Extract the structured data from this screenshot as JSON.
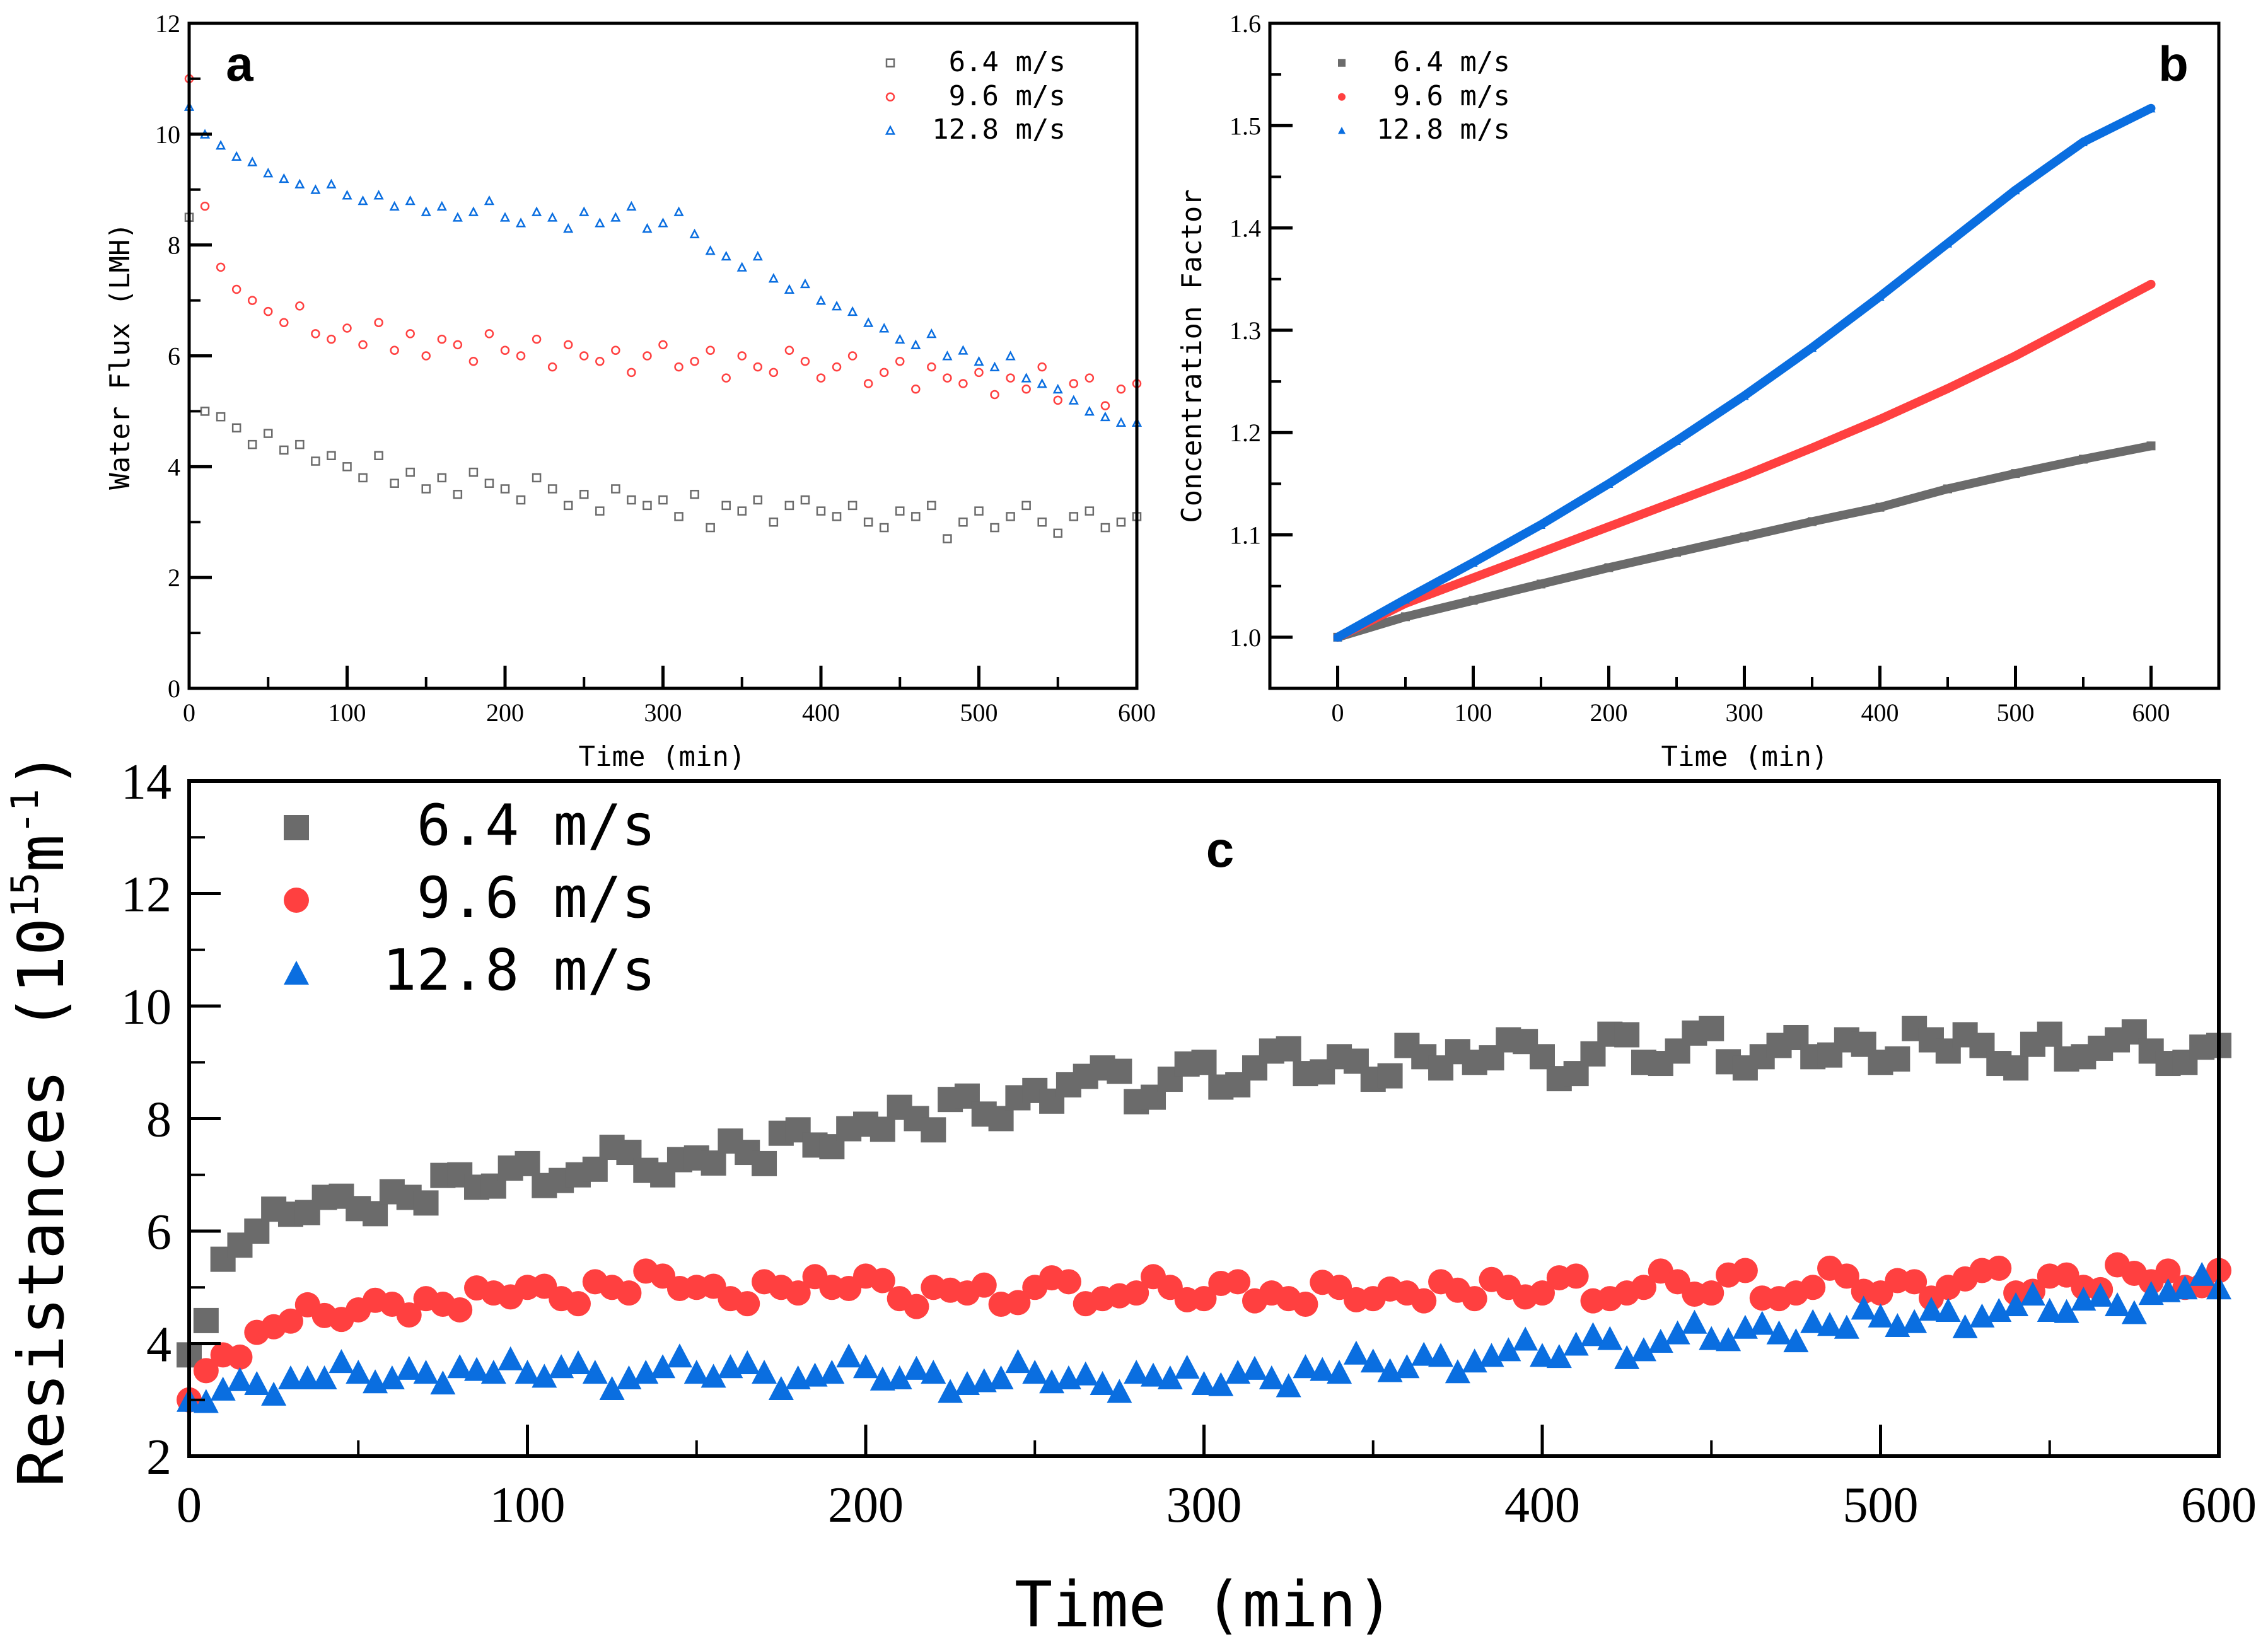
{
  "colors": {
    "s64": "#6b6b6b",
    "s96": "#ff4040",
    "s128": "#0a6ee0"
  },
  "chart_data": [
    {
      "type": "scatter",
      "panel_letter": "a",
      "xlabel": "Time (min)",
      "ylabel": "Water Flux (LMH)",
      "xlim": [
        0,
        600
      ],
      "ylim": [
        0,
        12
      ],
      "xticks": [
        "0",
        "100",
        "200",
        "300",
        "400",
        "500",
        "600"
      ],
      "yticks": [
        "0",
        "2",
        "4",
        "6",
        "8",
        "10",
        "12"
      ],
      "x_start": 0,
      "x_step": 10,
      "series": [
        {
          "name": "6.4 m/s",
          "marker": "open-square",
          "values": [
            8.5,
            5.0,
            4.9,
            4.7,
            4.4,
            4.6,
            4.3,
            4.4,
            4.1,
            4.2,
            4.0,
            3.8,
            4.2,
            3.7,
            3.9,
            3.6,
            3.8,
            3.5,
            3.9,
            3.7,
            3.6,
            3.4,
            3.8,
            3.6,
            3.3,
            3.5,
            3.2,
            3.6,
            3.4,
            3.3,
            3.4,
            3.1,
            3.5,
            2.9,
            3.3,
            3.2,
            3.4,
            3.0,
            3.3,
            3.4,
            3.2,
            3.1,
            3.3,
            3.0,
            2.9,
            3.2,
            3.1,
            3.3,
            2.7,
            3.0,
            3.2,
            2.9,
            3.1,
            3.3,
            3.0,
            2.8,
            3.1,
            3.2,
            2.9,
            3.0,
            3.1
          ]
        },
        {
          "name": "9.6 m/s",
          "marker": "open-circle",
          "values": [
            11.0,
            8.7,
            7.6,
            7.2,
            7.0,
            6.8,
            6.6,
            6.9,
            6.4,
            6.3,
            6.5,
            6.2,
            6.6,
            6.1,
            6.4,
            6.0,
            6.3,
            6.2,
            5.9,
            6.4,
            6.1,
            6.0,
            6.3,
            5.8,
            6.2,
            6.0,
            5.9,
            6.1,
            5.7,
            6.0,
            6.2,
            5.8,
            5.9,
            6.1,
            5.6,
            6.0,
            5.8,
            5.7,
            6.1,
            5.9,
            5.6,
            5.8,
            6.0,
            5.5,
            5.7,
            5.9,
            5.4,
            5.8,
            5.6,
            5.5,
            5.7,
            5.3,
            5.6,
            5.4,
            5.8,
            5.2,
            5.5,
            5.6,
            5.1,
            5.4,
            5.5
          ]
        },
        {
          "name": "12.8 m/s",
          "marker": "open-triangle",
          "values": [
            10.5,
            10.0,
            9.8,
            9.6,
            9.5,
            9.3,
            9.2,
            9.1,
            9.0,
            9.1,
            8.9,
            8.8,
            8.9,
            8.7,
            8.8,
            8.6,
            8.7,
            8.5,
            8.6,
            8.8,
            8.5,
            8.4,
            8.6,
            8.5,
            8.3,
            8.6,
            8.4,
            8.5,
            8.7,
            8.3,
            8.4,
            8.6,
            8.2,
            7.9,
            7.8,
            7.6,
            7.8,
            7.4,
            7.2,
            7.3,
            7.0,
            6.9,
            6.8,
            6.6,
            6.5,
            6.3,
            6.2,
            6.4,
            6.0,
            6.1,
            5.9,
            5.8,
            6.0,
            5.6,
            5.5,
            5.4,
            5.2,
            5.0,
            4.9,
            4.8,
            4.8
          ]
        }
      ]
    },
    {
      "type": "line",
      "panel_letter": "b",
      "xlabel": "Time (min)",
      "ylabel": "Concentration Factor",
      "xlim": [
        -50,
        650
      ],
      "ylim": [
        0.95,
        1.6
      ],
      "xticks": [
        "0",
        "100",
        "200",
        "300",
        "400",
        "500",
        "600"
      ],
      "yticks": [
        "1.0",
        "1.1",
        "1.2",
        "1.3",
        "1.4",
        "1.5",
        "1.6"
      ],
      "x_start": 0,
      "x_step": 50,
      "series": [
        {
          "name": "6.4 m/s",
          "marker": "filled-square",
          "values": [
            1.0,
            1.02,
            1.036,
            1.052,
            1.068,
            1.083,
            1.098,
            1.113,
            1.127,
            1.145,
            1.16,
            1.174,
            1.187
          ]
        },
        {
          "name": "9.6 m/s",
          "marker": "filled-circle",
          "values": [
            1.0,
            1.033,
            1.058,
            1.083,
            1.108,
            1.133,
            1.158,
            1.185,
            1.213,
            1.243,
            1.275,
            1.31,
            1.345
          ]
        },
        {
          "name": "12.8 m/s",
          "marker": "filled-triangle",
          "values": [
            1.0,
            1.037,
            1.073,
            1.11,
            1.15,
            1.192,
            1.236,
            1.283,
            1.333,
            1.385,
            1.437,
            1.484,
            1.517
          ]
        }
      ]
    },
    {
      "type": "scatter",
      "panel_letter": "c",
      "xlabel": "Time (min)",
      "ylabel": "Resistances (10",
      "ylabel_sup1": "15",
      "ylabel_mid": "m",
      "ylabel_sup2": "-1",
      "ylabel_end": ")",
      "xlim": [
        0,
        600
      ],
      "ylim": [
        2,
        14
      ],
      "xticks": [
        "0",
        "100",
        "200",
        "300",
        "400",
        "500",
        "600"
      ],
      "yticks": [
        "2",
        "4",
        "6",
        "8",
        "10",
        "12",
        "14"
      ],
      "x_start": 0,
      "x_step": 10,
      "series": [
        {
          "name": "6.4 m/s",
          "marker": "filled-square",
          "values": [
            3.8,
            5.5,
            6.0,
            6.3,
            6.6,
            6.4,
            6.7,
            6.5,
            7.0,
            6.8,
            7.2,
            6.9,
            7.1,
            7.4,
            7.0,
            7.3,
            7.6,
            7.2,
            7.8,
            7.5,
            7.9,
            8.2,
            7.8,
            8.4,
            8.0,
            8.5,
            8.6,
            8.9,
            8.3,
            8.7,
            9.0,
            8.6,
            9.2,
            8.8,
            9.1,
            8.7,
            9.3,
            8.9,
            9.0,
            9.4,
            9.1,
            8.8,
            9.5,
            9.0,
            9.2,
            9.6,
            8.9,
            9.3,
            9.1,
            9.4,
            9.0,
            9.6,
            9.2,
            9.3,
            8.9,
            9.5,
            9.1,
            9.4,
            9.2,
            9.0,
            9.3
          ]
        },
        {
          "name": "9.6 m/s",
          "marker": "filled-circle",
          "values": [
            3.0,
            3.8,
            4.2,
            4.4,
            4.5,
            4.6,
            4.7,
            4.8,
            4.6,
            4.9,
            5.0,
            4.8,
            5.1,
            4.9,
            5.2,
            5.0,
            4.8,
            5.1,
            4.9,
            5.0,
            5.2,
            4.8,
            5.0,
            4.9,
            4.7,
            5.0,
            5.1,
            4.8,
            4.9,
            5.0,
            4.8,
            5.1,
            4.9,
            4.7,
            5.0,
            4.8,
            4.9,
            5.1,
            4.8,
            5.0,
            4.9,
            5.2,
            4.8,
            5.0,
            5.1,
            4.9,
            5.3,
            4.8,
            5.0,
            5.2,
            4.9,
            5.1,
            5.0,
            5.3,
            4.9,
            5.2,
            5.0,
            5.4,
            5.1,
            5.0,
            5.3
          ]
        },
        {
          "name": "12.8 m/s",
          "marker": "filled-triangle",
          "values": [
            3.0,
            3.2,
            3.3,
            3.4,
            3.4,
            3.5,
            3.4,
            3.5,
            3.6,
            3.5,
            3.5,
            3.6,
            3.5,
            3.4,
            3.6,
            3.5,
            3.6,
            3.5,
            3.4,
            3.5,
            3.6,
            3.4,
            3.5,
            3.3,
            3.4,
            3.5,
            3.4,
            3.3,
            3.5,
            3.4,
            3.3,
            3.5,
            3.4,
            3.6,
            3.5,
            3.7,
            3.6,
            3.8,
            3.7,
            3.9,
            3.8,
            4.0,
            4.1,
            3.9,
            4.2,
            4.1,
            4.3,
            4.2,
            4.4,
            4.3,
            4.5,
            4.4,
            4.6,
            4.5,
            4.7,
            4.6,
            4.8,
            4.7,
            4.9,
            5.0,
            5.0
          ]
        }
      ]
    }
  ]
}
